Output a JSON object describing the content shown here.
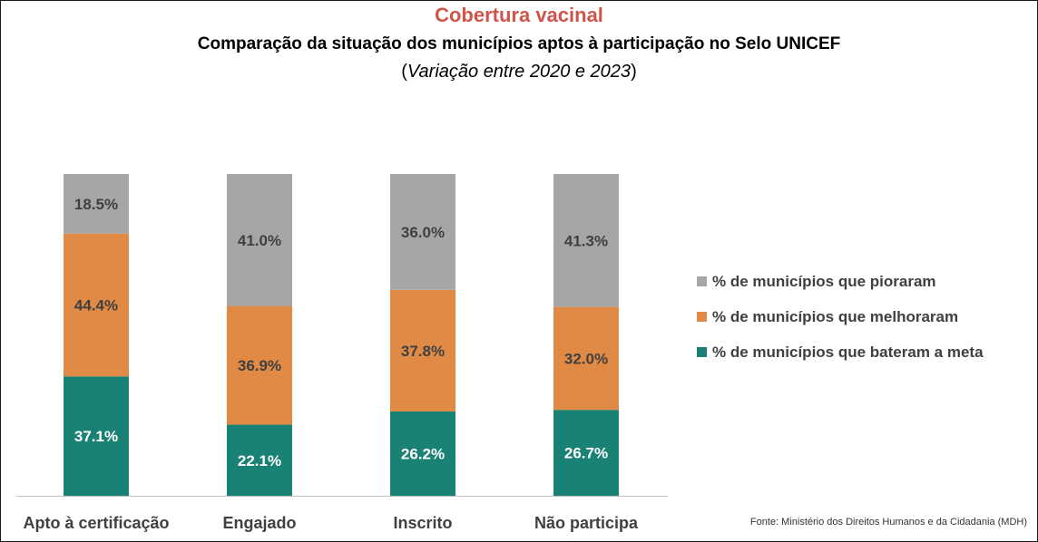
{
  "title": "Cobertura vacinal",
  "subtitle": "Comparação da situação dos municípios aptos à participação no Selo UNICEF",
  "variation": "Variação entre 2020 e 2023",
  "source": "Fonte: Ministério dos Direitos Humanos e da Cidadania (MDH)",
  "colors": {
    "title": "#d0544a",
    "bateram": "#1a8275",
    "melhoraram": "#e08a45",
    "pioraram": "#a6a6a6"
  },
  "chart_data": {
    "type": "bar",
    "stacked": true,
    "normalized": true,
    "title": "Cobertura vacinal",
    "subtitle": "Comparação da situação dos municípios aptos à participação no Selo UNICEF",
    "categories": [
      "Apto à certificação",
      "Engajado",
      "Inscrito",
      "Não participa"
    ],
    "series": [
      {
        "name": "% de municípios que bateram a meta",
        "color": "#1a8275",
        "values": [
          37.1,
          22.1,
          26.2,
          26.7
        ],
        "labels": [
          "37.1%",
          "22.1%",
          "26.2%",
          "26.7%"
        ]
      },
      {
        "name": "% de municípios que melhoraram",
        "color": "#e08a45",
        "values": [
          44.4,
          36.9,
          37.8,
          32.0
        ],
        "labels": [
          "44.4%",
          "36.9%",
          "37.8%",
          "32.0%"
        ]
      },
      {
        "name": "% de municípios que pioraram",
        "color": "#a6a6a6",
        "values": [
          18.5,
          41.0,
          36.0,
          41.3
        ],
        "labels": [
          "18.5%",
          "41.0%",
          "36.0%",
          "41.3%"
        ]
      }
    ],
    "legend_order": [
      "% de municípios que pioraram",
      "% de municípios que melhoraram",
      "% de municípios que bateram a meta"
    ],
    "legend_position": "right",
    "ylim": [
      0,
      100
    ],
    "grid": false
  }
}
